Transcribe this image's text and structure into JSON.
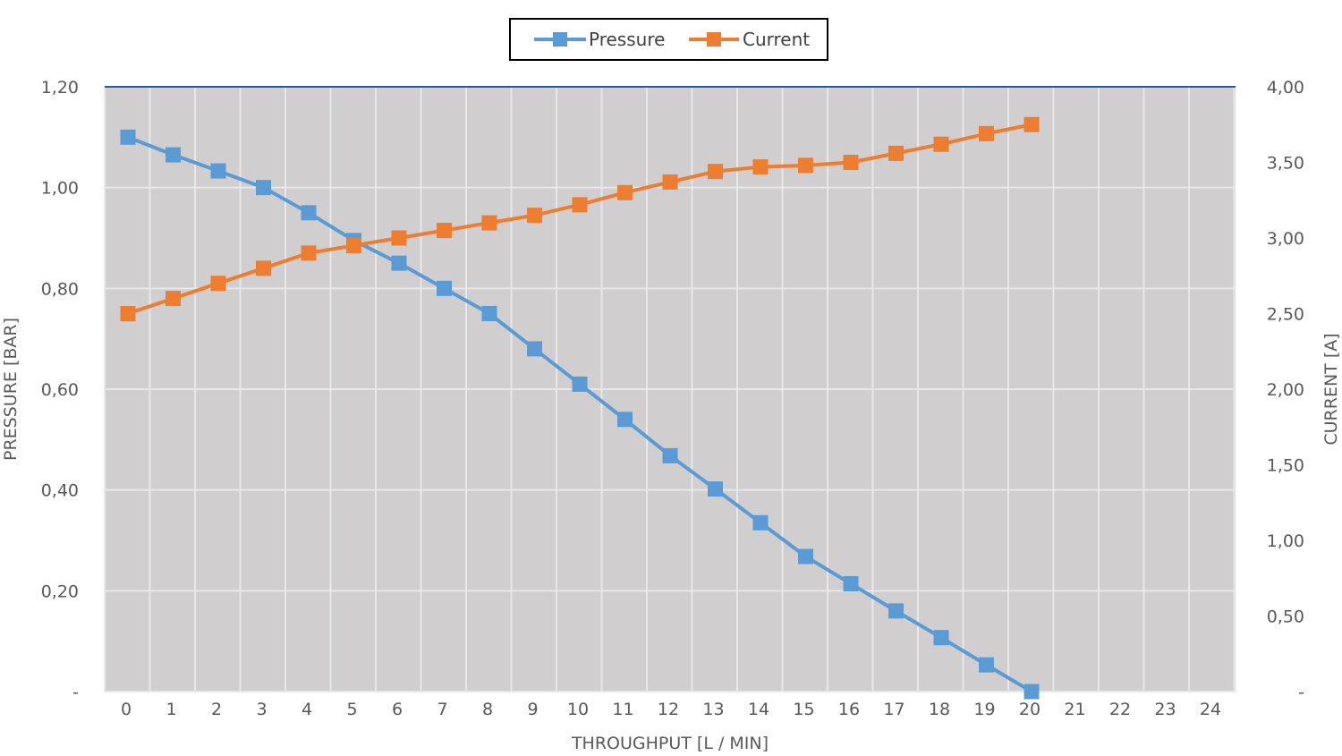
{
  "chart_data": {
    "type": "line",
    "x": [
      0,
      1,
      2,
      3,
      4,
      5,
      6,
      7,
      8,
      9,
      10,
      11,
      12,
      13,
      14,
      15,
      16,
      17,
      18,
      19,
      20
    ],
    "x_ticks": [
      "0",
      "1",
      "2",
      "3",
      "4",
      "5",
      "6",
      "7",
      "8",
      "9",
      "10",
      "11",
      "12",
      "13",
      "14",
      "15",
      "16",
      "17",
      "18",
      "19",
      "20",
      "21",
      "22",
      "23",
      "24"
    ],
    "xlim": [
      0,
      24
    ],
    "xlabel": "THROUGHPUT [L / MIN]",
    "ylabel": "PRESSURE [BAR]",
    "y2label": "CURRENT [A]",
    "ylim": [
      0,
      1.2
    ],
    "y2lim": [
      0,
      4.0
    ],
    "y_ticks": [
      {
        "value": 0,
        "label": "-"
      },
      {
        "value": 0.2,
        "label": "0,20"
      },
      {
        "value": 0.4,
        "label": "0,40"
      },
      {
        "value": 0.6,
        "label": "0,60"
      },
      {
        "value": 0.8,
        "label": "0,80"
      },
      {
        "value": 1.0,
        "label": "1,00"
      },
      {
        "value": 1.2,
        "label": "1,20"
      }
    ],
    "y2_ticks": [
      {
        "value": 0,
        "label": "-"
      },
      {
        "value": 0.5,
        "label": "0,50"
      },
      {
        "value": 1.0,
        "label": "1,00"
      },
      {
        "value": 1.5,
        "label": "1,50"
      },
      {
        "value": 2.0,
        "label": "2,00"
      },
      {
        "value": 2.5,
        "label": "2,50"
      },
      {
        "value": 3.0,
        "label": "3,00"
      },
      {
        "value": 3.5,
        "label": "3,50"
      },
      {
        "value": 4.0,
        "label": "4,00"
      }
    ],
    "series": [
      {
        "name": "Pressure",
        "axis": "left",
        "color": "#5b9bd5",
        "values": [
          1.1,
          1.065,
          1.033,
          1.0,
          0.95,
          0.895,
          0.85,
          0.8,
          0.75,
          0.68,
          0.61,
          0.54,
          0.468,
          0.402,
          0.335,
          0.268,
          0.214,
          0.16,
          0.107,
          0.053,
          0.0
        ]
      },
      {
        "name": "Current",
        "axis": "right",
        "color": "#ed7d31",
        "values": [
          2.5,
          2.6,
          2.7,
          2.8,
          2.9,
          2.95,
          3.0,
          3.05,
          3.1,
          3.15,
          3.22,
          3.3,
          3.37,
          3.44,
          3.47,
          3.48,
          3.5,
          3.56,
          3.62,
          3.69,
          3.75
        ]
      }
    ],
    "grid": true,
    "plot_background": "#d0cece",
    "grid_color": "#e8e8e8",
    "legend_position": "top-center"
  }
}
